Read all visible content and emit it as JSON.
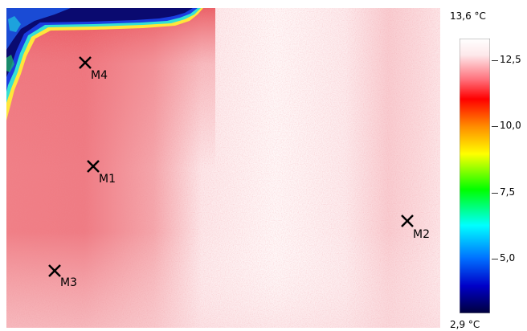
{
  "image": {
    "markers": [
      {
        "id": "M1",
        "label": "M1"
      },
      {
        "id": "M2",
        "label": "M2"
      },
      {
        "id": "M3",
        "label": "M3"
      },
      {
        "id": "M4",
        "label": "M4"
      }
    ]
  },
  "scale": {
    "max_label": "13,6 °C",
    "min_label": "2,9 °C",
    "ticks": [
      {
        "label": "12,5"
      },
      {
        "label": "10,0"
      },
      {
        "label": "7,5"
      },
      {
        "label": "5,0"
      }
    ],
    "colors": [
      "#ffffff",
      "#ff0000",
      "#ffff00",
      "#00ff00",
      "#00ffff",
      "#0000ff",
      "#000040"
    ]
  }
}
